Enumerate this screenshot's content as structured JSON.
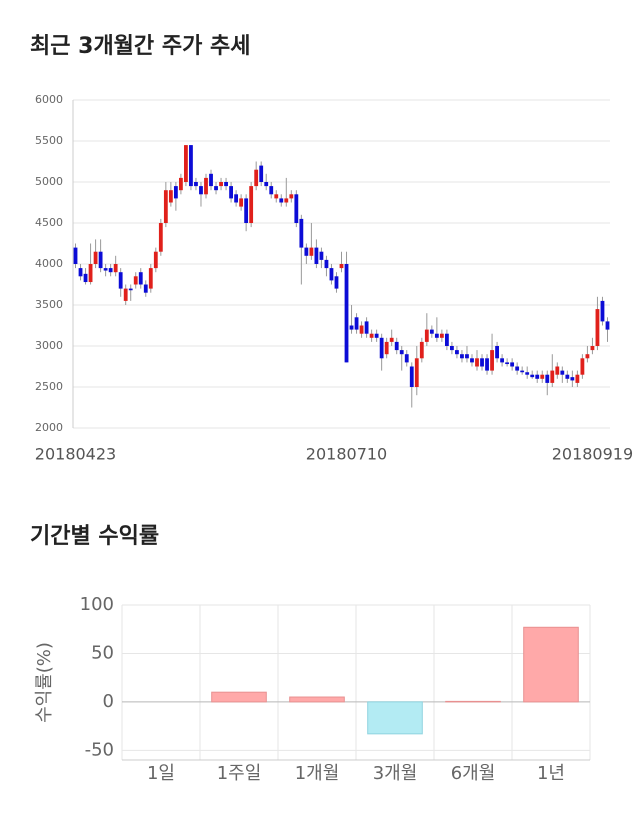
{
  "chart_data": [
    {
      "type": "candlestick",
      "title": "최근 3개월간 주가 추세",
      "categories": [
        "20180423",
        null,
        null,
        null,
        null,
        null,
        null,
        null,
        null,
        null,
        null,
        null,
        null,
        null,
        null,
        null,
        null,
        null,
        null,
        null,
        null,
        null,
        null,
        null,
        null,
        null,
        null,
        null,
        null,
        null,
        null,
        null,
        null,
        null,
        null,
        null,
        null,
        null,
        null,
        null,
        null,
        null,
        null,
        null,
        null,
        null,
        null,
        null,
        null,
        null,
        null,
        null,
        null,
        null,
        "20180710",
        null,
        null,
        null,
        null,
        null,
        null,
        null,
        null,
        null,
        null,
        null,
        null,
        null,
        null,
        null,
        null,
        null,
        null,
        null,
        null,
        null,
        null,
        null,
        null,
        null,
        null,
        null,
        null,
        null,
        null,
        null,
        null,
        null,
        null,
        null,
        null,
        null,
        null,
        null,
        null,
        null,
        null,
        null,
        null,
        null,
        null,
        null,
        null,
        "20180919",
        null,
        null,
        null
      ],
      "open": [
        4200,
        3950,
        3880,
        3780,
        4000,
        4150,
        3950,
        3950,
        3900,
        3900,
        3550,
        3700,
        3750,
        3900,
        3750,
        3700,
        3950,
        4150,
        4500,
        4750,
        4950,
        4900,
        5000,
        5450,
        5000,
        4950,
        4850,
        5100,
        4950,
        4950,
        5000,
        4950,
        4850,
        4700,
        4800,
        4500,
        4950,
        5200,
        5000,
        4950,
        4800,
        4800,
        4750,
        4800,
        4850,
        4550,
        4200,
        4100,
        4200,
        4150,
        4050,
        3950,
        3850,
        3950,
        4000,
        3250,
        3350,
        3150,
        3300,
        3100,
        3150,
        3100,
        2900,
        3050,
        3050,
        2950,
        2900,
        2750,
        2500,
        2850,
        3050,
        3200,
        3150,
        3100,
        3150,
        3000,
        2950,
        2900,
        2900,
        2850,
        2750,
        2850,
        2850,
        2700,
        3000,
        2850,
        2800,
        2800,
        2750,
        2700,
        2680,
        2650,
        2650,
        2600,
        2650,
        2550,
        2650,
        2700,
        2650,
        2620,
        2550,
        2650,
        2850,
        2950,
        3000,
        3550,
        3300
      ],
      "high": [
        4250,
        4000,
        3950,
        4250,
        4300,
        4300,
        4000,
        4000,
        4100,
        3950,
        3750,
        3750,
        3900,
        3950,
        3800,
        4000,
        4200,
        4550,
        5000,
        5000,
        5000,
        5100,
        5450,
        5450,
        5050,
        5000,
        5100,
        5150,
        5000,
        5050,
        5050,
        5000,
        4900,
        4850,
        4850,
        5000,
        5250,
        5250,
        5100,
        5000,
        4900,
        4850,
        5050,
        4900,
        4900,
        4600,
        4250,
        4500,
        4300,
        4200,
        4100,
        4000,
        3900,
        4150,
        4150,
        3500,
        3400,
        3300,
        3350,
        3200,
        3200,
        3150,
        3100,
        3200,
        3100,
        3000,
        2950,
        2800,
        3000,
        3100,
        3400,
        3250,
        3350,
        3200,
        3200,
        3050,
        3000,
        2950,
        3000,
        2900,
        2950,
        2900,
        2900,
        3150,
        3050,
        2900,
        2850,
        2850,
        2800,
        2750,
        2750,
        2700,
        2700,
        2700,
        2700,
        2900,
        2800,
        2750,
        2700,
        2700,
        2700,
        2900,
        3000,
        3100,
        3600,
        3600,
        3350
      ],
      "low": [
        3950,
        3800,
        3750,
        3750,
        3950,
        3900,
        3850,
        3850,
        3850,
        3600,
        3500,
        3550,
        3700,
        3700,
        3600,
        3650,
        3900,
        4100,
        4450,
        4700,
        4650,
        4850,
        4950,
        4900,
        4900,
        4700,
        4800,
        4900,
        4850,
        4900,
        4900,
        4750,
        4700,
        4650,
        4400,
        4450,
        4900,
        4950,
        4900,
        4800,
        4750,
        4700,
        4700,
        4750,
        4450,
        3750,
        4000,
        4050,
        3950,
        3950,
        3850,
        3750,
        3650,
        3900,
        2800,
        3150,
        3150,
        3100,
        3100,
        3050,
        3050,
        2700,
        2850,
        3000,
        2900,
        2700,
        2750,
        2250,
        2400,
        2800,
        3000,
        3100,
        3050,
        3050,
        2950,
        2900,
        2850,
        2800,
        2800,
        2750,
        2700,
        2700,
        2650,
        2650,
        2800,
        2750,
        2750,
        2700,
        2650,
        2650,
        2600,
        2600,
        2550,
        2550,
        2400,
        2500,
        2600,
        2550,
        2550,
        2500,
        2500,
        2600,
        2800,
        2900,
        2950,
        3250,
        3050
      ],
      "close": [
        4000,
        3850,
        3780,
        4000,
        4150,
        3950,
        3920,
        3900,
        4000,
        3700,
        3700,
        3680,
        3850,
        3750,
        3650,
        3950,
        4150,
        4500,
        4900,
        4900,
        4800,
        5050,
        5450,
        4950,
        4950,
        4850,
        5050,
        4950,
        4900,
        5000,
        4950,
        4800,
        4750,
        4800,
        4500,
        4950,
        5150,
        5000,
        4950,
        4850,
        4850,
        4750,
        4800,
        4850,
        4500,
        4200,
        4100,
        4200,
        4000,
        4050,
        3950,
        3800,
        3700,
        4000,
        2800,
        3200,
        3200,
        3250,
        3150,
        3150,
        3100,
        2850,
        3050,
        3100,
        2950,
        2900,
        2800,
        2500,
        2850,
        3050,
        3200,
        3150,
        3100,
        3150,
        3000,
        2950,
        2900,
        2850,
        2850,
        2800,
        2850,
        2750,
        2700,
        2950,
        2850,
        2800,
        2780,
        2750,
        2700,
        2680,
        2650,
        2620,
        2600,
        2650,
        2550,
        2700,
        2750,
        2650,
        2600,
        2580,
        2650,
        2850,
        2900,
        3000,
        3450,
        3300,
        3200
      ],
      "up_color": "#e0201b",
      "down_color": "#0c0cd6",
      "ylim": [
        2000,
        6000
      ],
      "yticks": [
        2000,
        2500,
        3000,
        3500,
        4000,
        4500,
        5000,
        5500,
        6000
      ],
      "grid": true
    },
    {
      "type": "bar",
      "title": "기간별 수익률",
      "ylabel": "수익률(%)",
      "categories": [
        "1일",
        "1주일",
        "1개월",
        "3개월",
        "6개월",
        "1년"
      ],
      "values": [
        0,
        10,
        5,
        -33,
        0.5,
        77
      ],
      "positive_color": "#ffa9a9",
      "negative_color": "#b3ebf3",
      "ylim": [
        -60,
        100
      ],
      "yticks": [
        -50,
        0,
        50,
        100
      ],
      "grid": true
    }
  ]
}
